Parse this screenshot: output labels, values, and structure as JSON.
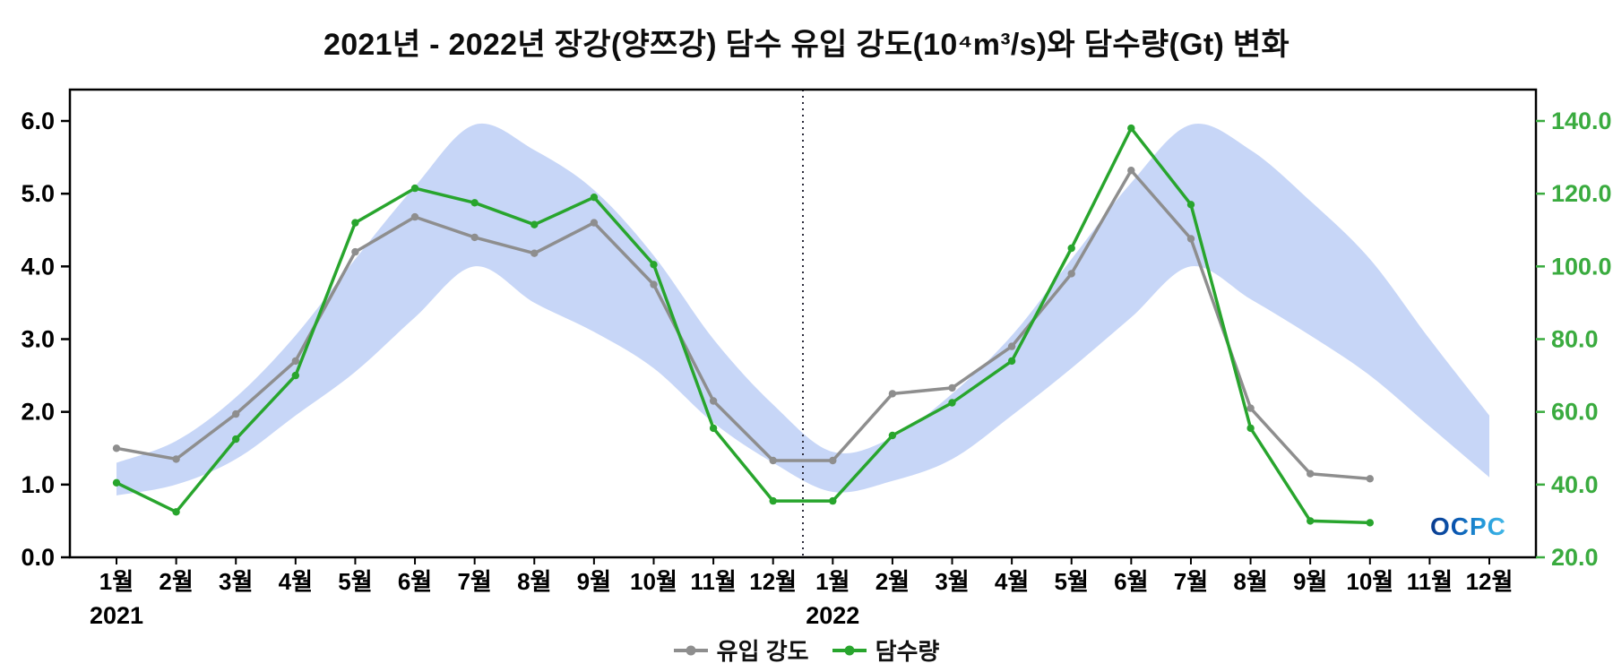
{
  "title": "2021년 - 2022년 장강(양쯔강) 담수 유입 강도(10⁴m³/s)와 담수량(Gt) 변화",
  "logo": "OCPC",
  "legend": [
    {
      "label": "유입 강도",
      "color": "#8e8e8e"
    },
    {
      "label": "담수량",
      "color": "#28a52d"
    }
  ],
  "chart_data": {
    "type": "line",
    "title": "2021년 - 2022년 장강(양쯔강) 담수 유입 강도(10⁴m³/s)와 담수량(Gt) 변화",
    "categories": [
      "1월",
      "2월",
      "3월",
      "4월",
      "5월",
      "6월",
      "7월",
      "8월",
      "9월",
      "10월",
      "11월",
      "12월",
      "1월",
      "2월",
      "3월",
      "4월",
      "5월",
      "6월",
      "7월",
      "8월",
      "9월",
      "10월",
      "11월",
      "12월"
    ],
    "year_labels": [
      {
        "index": 0,
        "label": "2021"
      },
      {
        "index": 12,
        "label": "2022"
      }
    ],
    "left_axis": {
      "range": [
        0,
        6
      ],
      "ticks": [
        0,
        1,
        2,
        3,
        4,
        5,
        6
      ],
      "tick_labels": [
        "0.0",
        "1.0",
        "2.0",
        "3.0",
        "4.0",
        "5.0",
        "6.0"
      ],
      "label_color": "#000000",
      "unit": "10⁴m³/s"
    },
    "right_axis": {
      "range": [
        20,
        140
      ],
      "ticks": [
        20,
        40,
        60,
        80,
        100,
        120,
        140
      ],
      "tick_labels": [
        "20.0",
        "40.0",
        "60.0",
        "80.0",
        "100.0",
        "120.0",
        "140.0"
      ],
      "label_color": "#3aab3f",
      "unit": "Gt"
    },
    "series": [
      {
        "id": "inflow-intensity",
        "name": "유입 강도",
        "axis": "left",
        "color": "#8e8e8e",
        "values": [
          1.5,
          1.35,
          1.97,
          2.7,
          4.2,
          4.68,
          4.4,
          4.18,
          4.6,
          3.75,
          2.15,
          1.33,
          1.33,
          2.25,
          2.33,
          2.9,
          3.9,
          5.32,
          4.38,
          2.05,
          1.15,
          1.08,
          null,
          null
        ]
      },
      {
        "id": "freshwater-volume",
        "name": "담수량",
        "axis": "right",
        "color": "#28a52d",
        "values": [
          40.5,
          32.5,
          52.5,
          70,
          112,
          121.5,
          117.5,
          111.5,
          119,
          100.5,
          55.5,
          35.5,
          35.5,
          53.5,
          62.5,
          74,
          105,
          138,
          117,
          55.5,
          30,
          29.5,
          null,
          null
        ]
      }
    ],
    "band": {
      "name": "climatology-range",
      "axis": "left",
      "color": "#b9ccf5",
      "opacity": 0.8,
      "lower": [
        0.85,
        1.0,
        1.35,
        1.95,
        2.55,
        3.3,
        4.0,
        3.5,
        3.1,
        2.6,
        1.85,
        1.3,
        0.9,
        1.05,
        1.35,
        1.95,
        2.6,
        3.3,
        4.0,
        3.55,
        3.05,
        2.5,
        1.8,
        1.1
      ],
      "upper": [
        1.3,
        1.6,
        2.2,
        3.05,
        4.1,
        5.1,
        5.95,
        5.6,
        5.05,
        4.15,
        3.0,
        2.1,
        1.45,
        1.65,
        2.25,
        3.05,
        4.1,
        5.15,
        5.95,
        5.6,
        4.9,
        4.1,
        3.0,
        1.95
      ]
    },
    "separator_index": 11.5,
    "grid": false,
    "legend_position": "bottom"
  }
}
